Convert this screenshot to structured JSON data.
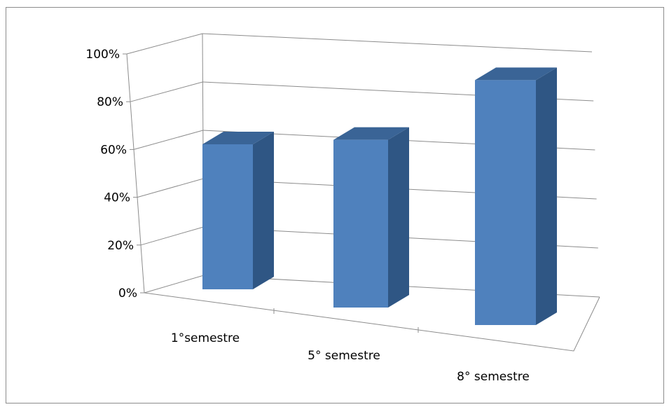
{
  "chart_data": {
    "type": "bar",
    "categories": [
      "1°semestre",
      "5° semestre",
      "8° semestre"
    ],
    "values": [
      60,
      68,
      92
    ],
    "y_ticks": [
      "0%",
      "20%",
      "40%",
      "60%",
      "80%",
      "100%"
    ],
    "ylim": [
      0,
      100
    ],
    "grid": true,
    "legend": "none",
    "style": "3d-column",
    "colors": {
      "bar_front": "#4f81bd",
      "bar_top": "#3a6496",
      "bar_side": "#2f5684",
      "grid": "#8c8c8c"
    }
  }
}
